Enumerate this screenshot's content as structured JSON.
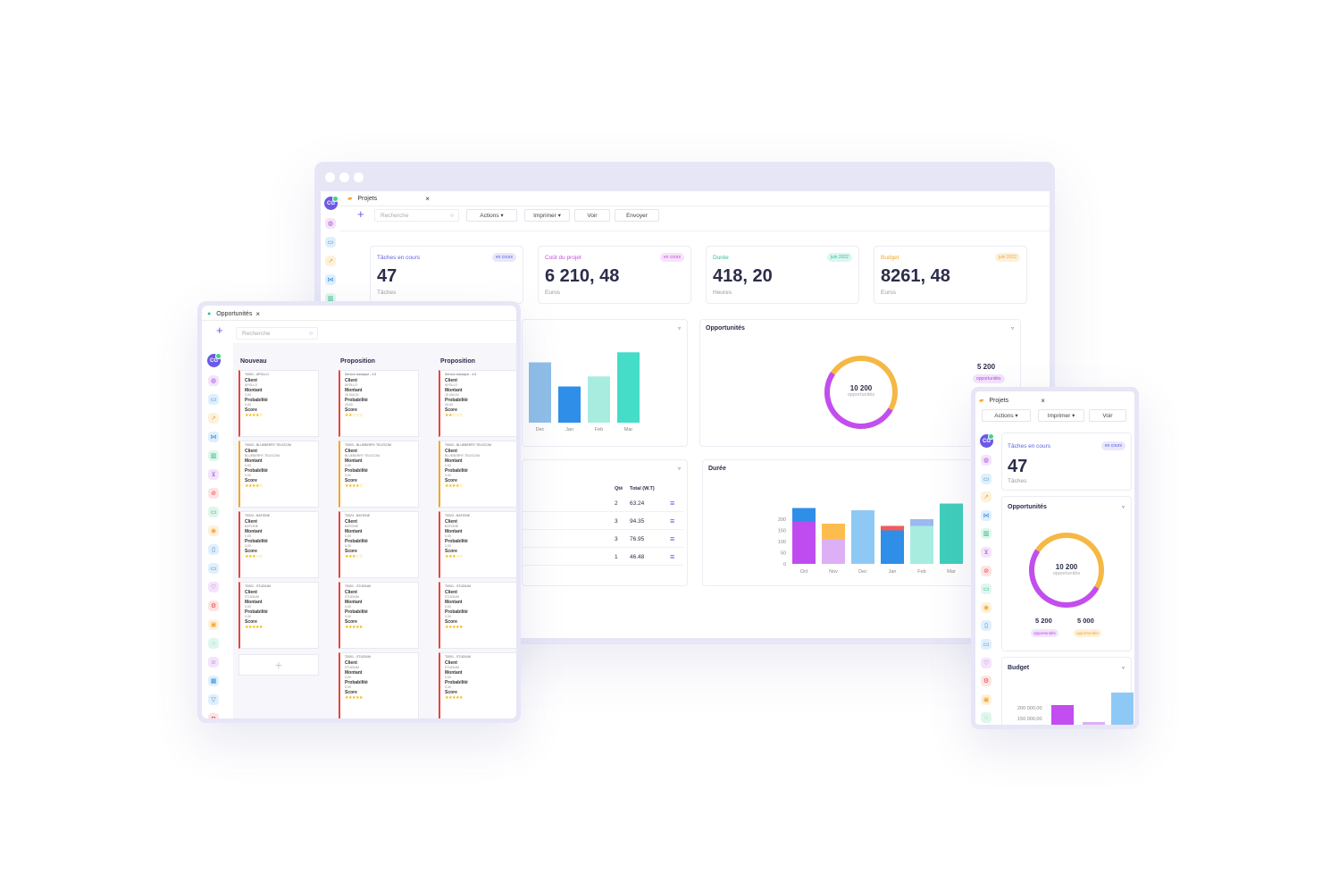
{
  "desktop": {
    "tab_label": "Projets",
    "search_placeholder": "Recherche",
    "buttons": {
      "actions": "Actions",
      "print": "Imprimer",
      "view": "Voir",
      "send": "Envoyer"
    },
    "avatar": "CG",
    "kpis": [
      {
        "label": "Tâches en cours",
        "badge": "en cours",
        "value": "47",
        "unit": "Tâches",
        "color": "#5b5fe3"
      },
      {
        "label": "Coût du projet",
        "badge": "en cours",
        "value": "6 210, 48",
        "unit": "Euros",
        "color": "#c44de0"
      },
      {
        "label": "Durée",
        "badge": "juin 2022",
        "value": "418, 20",
        "unit": "Heures",
        "color": "#27c2a6"
      },
      {
        "label": "Budget",
        "badge": "juin 2022",
        "value": "8261, 48",
        "unit": "Euros",
        "color": "#f5a623"
      }
    ],
    "bar_panel": {
      "labels": [
        "Dec",
        "Jan",
        "Feb",
        "Mar"
      ]
    },
    "opportunities": {
      "title": "Opportunités",
      "donut_value": "10 200",
      "donut_label": "opportunités",
      "stat_value": "5 200",
      "stat_label": "opportunités"
    },
    "table": {
      "headers": [
        "Qté",
        "Total (W.T)"
      ],
      "rows": [
        [
          "2",
          "63.24"
        ],
        [
          "3",
          "94.35"
        ],
        [
          "3",
          "76.95"
        ],
        [
          "1",
          "46.48"
        ]
      ]
    },
    "duration": {
      "title": "Durée"
    }
  },
  "tablet": {
    "tab_label": "Opportunités",
    "search_placeholder": "Recherche",
    "avatar": "CG",
    "columns": [
      {
        "title": "Nouveau",
        "cards": [
          {
            "ref": "T0001 - APOLLO",
            "client": "APOLLO",
            "amount": "0,00",
            "prob": "0,00",
            "stars": "★★★★☆"
          },
          {
            "ref": "T0003 - BLUEBERRY TELECOM",
            "client": "BLUEBERRY TELECOM",
            "amount": "0,00",
            "prob": "0,00",
            "stars": "★★★★☆"
          },
          {
            "ref": "T0024 - BATIONE",
            "client": "BATIONE",
            "amount": "0,00",
            "prob": "0,00",
            "stars": "★★★☆☆"
          },
          {
            "ref": "T0001 - STUDIUM",
            "client": "STUDIUM",
            "amount": "0,00",
            "prob": "0,00",
            "stars": "★★★★★"
          }
        ]
      },
      {
        "title": "Proposition",
        "cards": [
          {
            "ref": "Service classique - 4.5",
            "client": "APOLLO",
            "amount": "15 000,00",
            "prob": "25,00",
            "stars": "★★☆☆☆"
          },
          {
            "ref": "T0003 - BLUEBERRY TELECOM",
            "client": "BLUEBERRY TELECOM",
            "amount": "0,00",
            "prob": "0,00",
            "stars": "★★★★☆"
          },
          {
            "ref": "T0024 - BATIONE",
            "client": "BATIONE",
            "amount": "0,00",
            "prob": "0,00",
            "stars": "★★★☆☆"
          },
          {
            "ref": "T0001 - STUDIUM",
            "client": "STUDIUM",
            "amount": "0,00",
            "prob": "0,00",
            "stars": "★★★★★"
          },
          {
            "ref": "T0001 - STUDIUM",
            "client": "STUDIUM",
            "amount": "0,00",
            "prob": "0,00",
            "stars": "★★★★★"
          }
        ]
      },
      {
        "title": "Proposition",
        "cards": [
          {
            "ref": "Service classique - 4.5",
            "client": "APOLLO",
            "amount": "15 000,00",
            "prob": "25,00",
            "stars": "★★☆☆☆"
          },
          {
            "ref": "T0003 - BLUEBERRY TELECOM",
            "client": "BLUEBERRY TELECOM",
            "amount": "0,00",
            "prob": "0,00",
            "stars": "★★★★☆"
          },
          {
            "ref": "T0024 - BATIONE",
            "client": "BATIONE",
            "amount": "0,00",
            "prob": "0,00",
            "stars": "★★★☆☆"
          },
          {
            "ref": "T0001 - STUDIUM",
            "client": "STUDIUM",
            "amount": "0,00",
            "prob": "0,00",
            "stars": "★★★★★"
          },
          {
            "ref": "T0001 - STUDIUM",
            "client": "STUDIUM",
            "amount": "0,00",
            "prob": "0,00",
            "stars": "★★★★★"
          }
        ]
      }
    ],
    "field_labels": {
      "client": "Client",
      "amount": "Montant",
      "prob": "Probabilité",
      "score": "Score"
    }
  },
  "phone": {
    "tab_label": "Projets",
    "buttons": {
      "actions": "Actions",
      "print": "Imprimer",
      "view": "Voir"
    },
    "avatar": "CG",
    "kpi": {
      "label": "Tâches en cours",
      "badge": "en cours",
      "value": "47",
      "unit": "Tâches"
    },
    "opportunities": {
      "title": "Opportunités",
      "donut_value": "10 200",
      "donut_label": "opportunités",
      "stat1": "5 200",
      "stat1_label": "opportunités",
      "stat2": "5 000",
      "stat2_label": "opportunités"
    },
    "budget": {
      "title": "Budget",
      "ticks": [
        "200 000,00",
        "150 000,00"
      ]
    }
  },
  "chart_data": [
    {
      "type": "bar",
      "categories": [
        "Dec",
        "Jan",
        "Feb",
        "Mar"
      ],
      "series": [
        {
          "values": [
            150,
            90,
            115,
            175
          ]
        }
      ],
      "colors": [
        "#8ebfe8",
        "#2e8ee8",
        "#a8ece0",
        "#45dcc8"
      ]
    },
    {
      "type": "bar",
      "categories": [
        "Oct",
        "Nov",
        "Dec",
        "Jan",
        "Feb",
        "Mar"
      ],
      "yticks": [
        0,
        50,
        100,
        150,
        200
      ],
      "ylim": [
        0,
        250
      ],
      "series": [
        {
          "values": [
            190,
            0,
            0,
            0,
            0,
            0
          ],
          "color": "#bf4cf0"
        },
        {
          "values": [
            0,
            110,
            0,
            0,
            0,
            0
          ],
          "color": "#ddb0f5"
        },
        {
          "values": [
            0,
            0,
            240,
            0,
            0,
            0
          ],
          "color": "#8ec9f5"
        },
        {
          "values": [
            60,
            0,
            0,
            150,
            0,
            0
          ],
          "color": "#2e8ee8"
        },
        {
          "values": [
            0,
            70,
            0,
            0,
            0,
            0
          ],
          "color": "#fdbd4e"
        },
        {
          "values": [
            0,
            0,
            0,
            20,
            0,
            0
          ],
          "color": "#f25a5a"
        },
        {
          "values": [
            0,
            0,
            0,
            0,
            170,
            0
          ],
          "color": "#a8ece0"
        },
        {
          "values": [
            0,
            0,
            0,
            0,
            30,
            0
          ],
          "color": "#9bb8f0"
        },
        {
          "values": [
            0,
            0,
            0,
            0,
            0,
            270
          ],
          "color": "#3fcfbb"
        }
      ]
    },
    {
      "type": "pie",
      "values": [
        5200,
        5000
      ],
      "colors": [
        "#c24df0",
        "#f5b844"
      ],
      "total": "10 200"
    }
  ]
}
